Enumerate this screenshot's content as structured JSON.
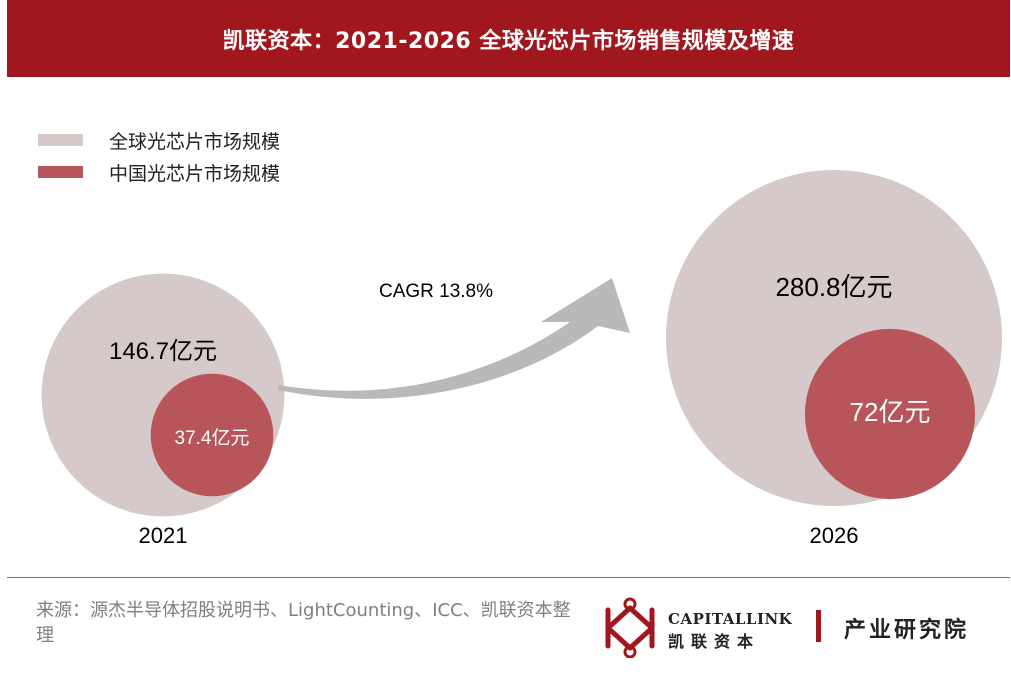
{
  "title": "凯联资本：2021-2026 全球光芯片市场销售规模及增速",
  "legend": [
    {
      "label": "全球光芯片市场规模",
      "color": "#d5c9ca"
    },
    {
      "label": "中国光芯片市场规模",
      "color": "#b8555a"
    }
  ],
  "chart_data": {
    "type": "bubble",
    "title": "凯联资本：2021-2026 全球光芯片市场销售规模及增速",
    "unit": "亿元",
    "categories": [
      "2021",
      "2026"
    ],
    "series": [
      {
        "name": "全球光芯片市场规模",
        "values": [
          146.7,
          280.8
        ],
        "labels": [
          "146.7亿元",
          "280.8亿元"
        ],
        "color": "#d5c9ca"
      },
      {
        "name": "中国光芯片市场规模",
        "values": [
          37.4,
          72
        ],
        "labels": [
          "37.4亿元",
          "72亿元"
        ],
        "color": "#b8555a"
      }
    ],
    "annotation": "CAGR 13.8%"
  },
  "source": "来源：源杰半导体招股说明书、LightCounting、ICC、凯联资本整理",
  "logo": {
    "name_en": "CAPITALLINK",
    "name_cn": "凯联资本",
    "division": "产业研究院",
    "accent": "#a0171e"
  }
}
